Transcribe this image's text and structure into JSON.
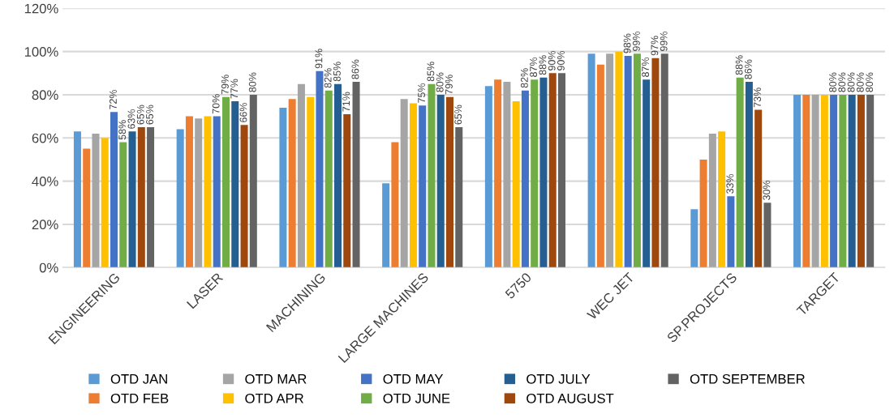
{
  "chart_data": {
    "type": "bar",
    "categories": [
      "ENGINEERING",
      "LASER",
      "MACHINING",
      "LARGE MACHINES",
      "5750",
      "WEC JET",
      "SP.PROJECTS",
      "TARGET"
    ],
    "series": [
      {
        "name": "OTD JAN",
        "color": "#5b9bd5",
        "values": [
          63,
          64,
          74,
          39,
          84,
          99,
          27,
          80
        ]
      },
      {
        "name": "OTD FEB",
        "color": "#ed7d31",
        "values": [
          55,
          70,
          78,
          58,
          87,
          94,
          50,
          80
        ]
      },
      {
        "name": "OTD MAR",
        "color": "#a5a5a5",
        "values": [
          62,
          69,
          85,
          78,
          86,
          99,
          62,
          80
        ]
      },
      {
        "name": "OTD APR",
        "color": "#ffc000",
        "values": [
          60,
          70,
          79,
          76,
          77,
          100,
          63,
          80
        ]
      },
      {
        "name": "OTD MAY",
        "color": "#4472c4",
        "values": [
          72,
          70,
          91,
          75,
          82,
          98,
          33,
          80
        ],
        "value_labels": [
          "72%",
          "70%",
          "91%",
          "75%",
          "82%",
          "98%",
          "33%",
          "80%"
        ]
      },
      {
        "name": "OTD JUNE",
        "color": "#70ad47",
        "values": [
          58,
          79,
          82,
          85,
          87,
          99,
          88,
          80
        ],
        "value_labels": [
          "58%",
          "79%",
          "82%",
          "85%",
          "87%",
          "99%",
          "88%",
          "80%"
        ]
      },
      {
        "name": "OTD JULY",
        "color": "#255e91",
        "values": [
          63,
          77,
          85,
          80,
          88,
          87,
          86,
          80
        ],
        "value_labels": [
          "63%",
          "77%",
          "85%",
          "80%",
          "88%",
          "87%",
          "86%",
          "80%"
        ]
      },
      {
        "name": "OTD AUGUST",
        "color": "#9e480e",
        "values": [
          65,
          66,
          71,
          79,
          90,
          97,
          73,
          80
        ],
        "value_labels": [
          "65%",
          "66%",
          "71%",
          "79%",
          "90%",
          "97%",
          "73%",
          "80%"
        ]
      },
      {
        "name": "OTD SEPTEMBER",
        "color": "#636363",
        "values": [
          65,
          80,
          86,
          65,
          90,
          99,
          30,
          80
        ],
        "value_labels": [
          "65%",
          "80%",
          "86%",
          "65%",
          "90%",
          "99%",
          "30%",
          "80%"
        ]
      }
    ],
    "ylim": [
      0,
      120
    ],
    "yticks": [
      {
        "value": 0,
        "label": "0%"
      },
      {
        "value": 20,
        "label": "20%"
      },
      {
        "value": 40,
        "label": "40%"
      },
      {
        "value": 60,
        "label": "60%"
      },
      {
        "value": 80,
        "label": "80%"
      },
      {
        "value": 100,
        "label": "100%"
      },
      {
        "value": 120,
        "label": "120%"
      }
    ],
    "grid": "y",
    "legend": "bottom"
  }
}
